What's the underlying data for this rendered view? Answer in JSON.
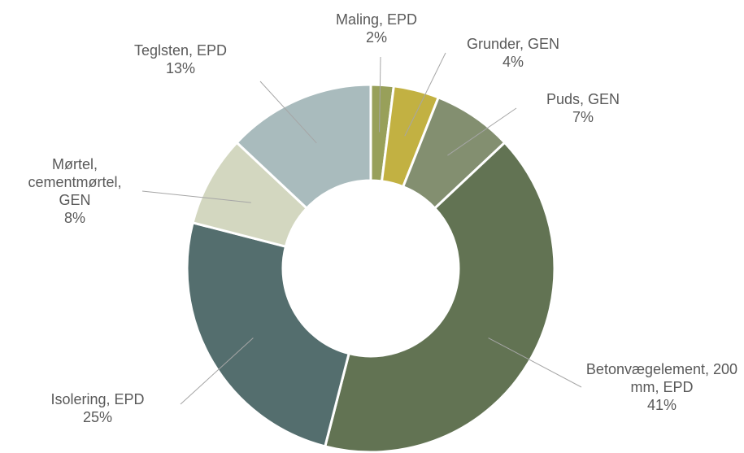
{
  "chart_data": {
    "type": "donut",
    "categories": [
      "Maling, EPD",
      "Grunder, GEN",
      "Puds, GEN",
      "Betonvægelement, 200 mm, EPD",
      "Isolering, EPD",
      "Mørtel, cementmørtel, GEN",
      "Teglsten, EPD"
    ],
    "values": [
      2,
      4,
      7,
      41,
      25,
      8,
      13
    ],
    "value_labels": [
      "2%",
      "4%",
      "7%",
      "41%",
      "25%",
      "8%",
      "13%"
    ],
    "colors": [
      "#98a05a",
      "#c2b142",
      "#838f70",
      "#627353",
      "#546e6e",
      "#d3d7c0",
      "#a9bbbd"
    ]
  }
}
